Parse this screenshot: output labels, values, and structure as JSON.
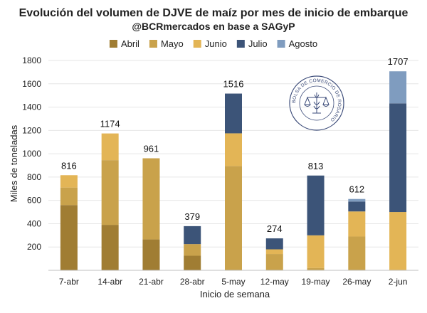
{
  "chart_data": {
    "type": "bar",
    "stacked": true,
    "title": "Evolución del volumen de DJVE de maíz por mes de inicio de embarque",
    "subtitle": "@BCRmercados en base a SAGyP",
    "xlabel": "Inicio de semana",
    "ylabel": "Miles de toneladas",
    "ylim": [
      0,
      1800
    ],
    "yticks": [
      "200",
      "400",
      "600",
      "800",
      "1000",
      "1200",
      "1400",
      "1600",
      "1800"
    ],
    "legend_position": "top",
    "categories": [
      "7-abr",
      "14-abr",
      "21-abr",
      "28-abr",
      "5-may",
      "12-may",
      "19-may",
      "26-may",
      "2-jun"
    ],
    "series": [
      {
        "name": "Abril",
        "color": "#a07d33",
        "values": [
          560,
          390,
          265,
          125,
          0,
          0,
          0,
          0,
          0
        ]
      },
      {
        "name": "Mayo",
        "color": "#c9a24b",
        "values": [
          150,
          555,
          696,
          100,
          895,
          140,
          20,
          290,
          0
        ]
      },
      {
        "name": "Junio",
        "color": "#e3b556",
        "values": [
          106,
          229,
          0,
          0,
          280,
          40,
          280,
          215,
          500
        ]
      },
      {
        "name": "Julio",
        "color": "#3c5478",
        "values": [
          0,
          0,
          0,
          154,
          341,
          94,
          513,
          85,
          932
        ]
      },
      {
        "name": "Agosto",
        "color": "#7f9cbf",
        "values": [
          0,
          0,
          0,
          0,
          0,
          0,
          0,
          22,
          275
        ]
      }
    ],
    "totals": [
      "816",
      "1174",
      "961",
      "379",
      "1516",
      "274",
      "813",
      "612",
      "1707"
    ]
  },
  "watermark": {
    "text": "BOLSA DE COMERCIO DE ROSARIO",
    "color": "#3a4a78"
  }
}
